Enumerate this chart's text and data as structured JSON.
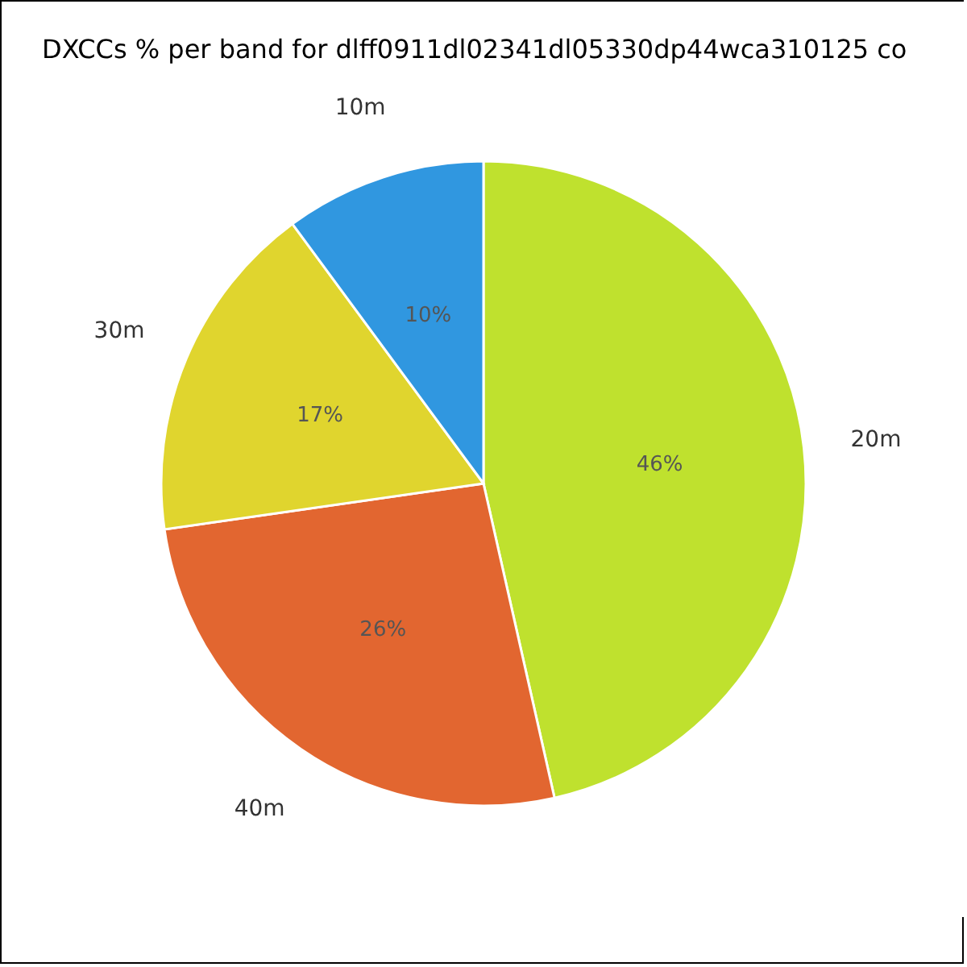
{
  "chart_data": {
    "type": "pie",
    "title": "DXCCs % per band for dlff0911dl02341dl05330dp44wca310125 co",
    "categories": [
      "20m",
      "40m",
      "30m",
      "10m"
    ],
    "values": [
      46,
      26,
      17,
      10
    ],
    "colors": [
      "#bfe12e",
      "#e26630",
      "#e0d52e",
      "#3097e0"
    ],
    "value_labels": [
      "46%",
      "26%",
      "17%",
      "10%"
    ]
  }
}
